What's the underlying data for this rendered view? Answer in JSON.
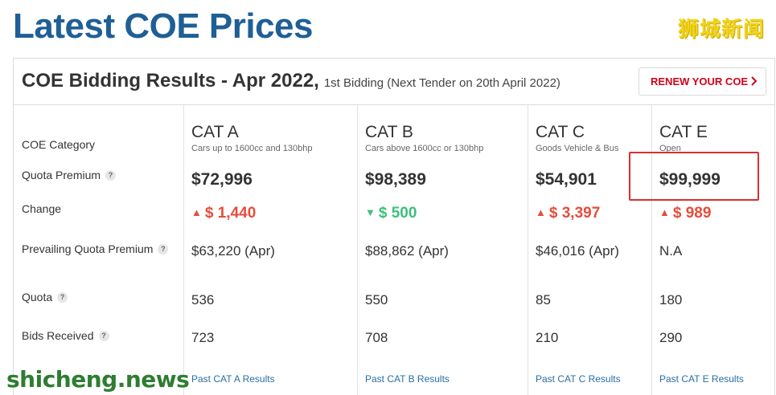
{
  "page_title": "Latest COE Prices",
  "watermarks": {
    "top": "狮城新闻",
    "bottom": "shicheng.news"
  },
  "header": {
    "title": "COE Bidding Results - Apr 2022,",
    "subtitle": "1st Bidding (Next Tender on 20th April 2022)",
    "renew_button": "RENEW YOUR COE",
    "renew_icon": "chevron-right-icon"
  },
  "row_labels": {
    "category": "COE Category",
    "quota_premium": "Quota Premium",
    "change": "Change",
    "prevailing": "Prevailing Quota Premium",
    "quota": "Quota",
    "bids": "Bids Received",
    "help_glyph": "?"
  },
  "categories": [
    {
      "name": "CAT A",
      "desc": "Cars up to 1600cc and 130bhp",
      "premium": "$72,996",
      "change": "$ 1,440",
      "direction": "up",
      "prevailing": "$63,220 (Apr)",
      "quota": "536",
      "bids": "723",
      "link": "Past CAT A Results"
    },
    {
      "name": "CAT B",
      "desc": "Cars above 1600cc or 130bhp",
      "premium": "$98,389",
      "change": "$ 500",
      "direction": "down",
      "prevailing": "$88,862 (Apr)",
      "quota": "550",
      "bids": "708",
      "link": "Past CAT B Results"
    },
    {
      "name": "CAT C",
      "desc": "Goods Vehicle & Bus",
      "premium": "$54,901",
      "change": "$ 3,397",
      "direction": "up",
      "prevailing": "$46,016 (Apr)",
      "quota": "85",
      "bids": "210",
      "link": "Past CAT C Results"
    },
    {
      "name": "CAT E",
      "desc": "Open",
      "premium": "$99,999",
      "change": "$ 989",
      "direction": "up",
      "prevailing": "N.A",
      "quota": "180",
      "bids": "290",
      "link": "Past CAT E Results"
    }
  ],
  "arrows": {
    "up": "▲",
    "down": "▼"
  },
  "colors": {
    "title": "#1f5f96",
    "up": "#e74c3c",
    "down": "#3dbf7a",
    "link": "#2a6ea6",
    "accent": "#d0021b",
    "highlight": "#d9302c"
  }
}
